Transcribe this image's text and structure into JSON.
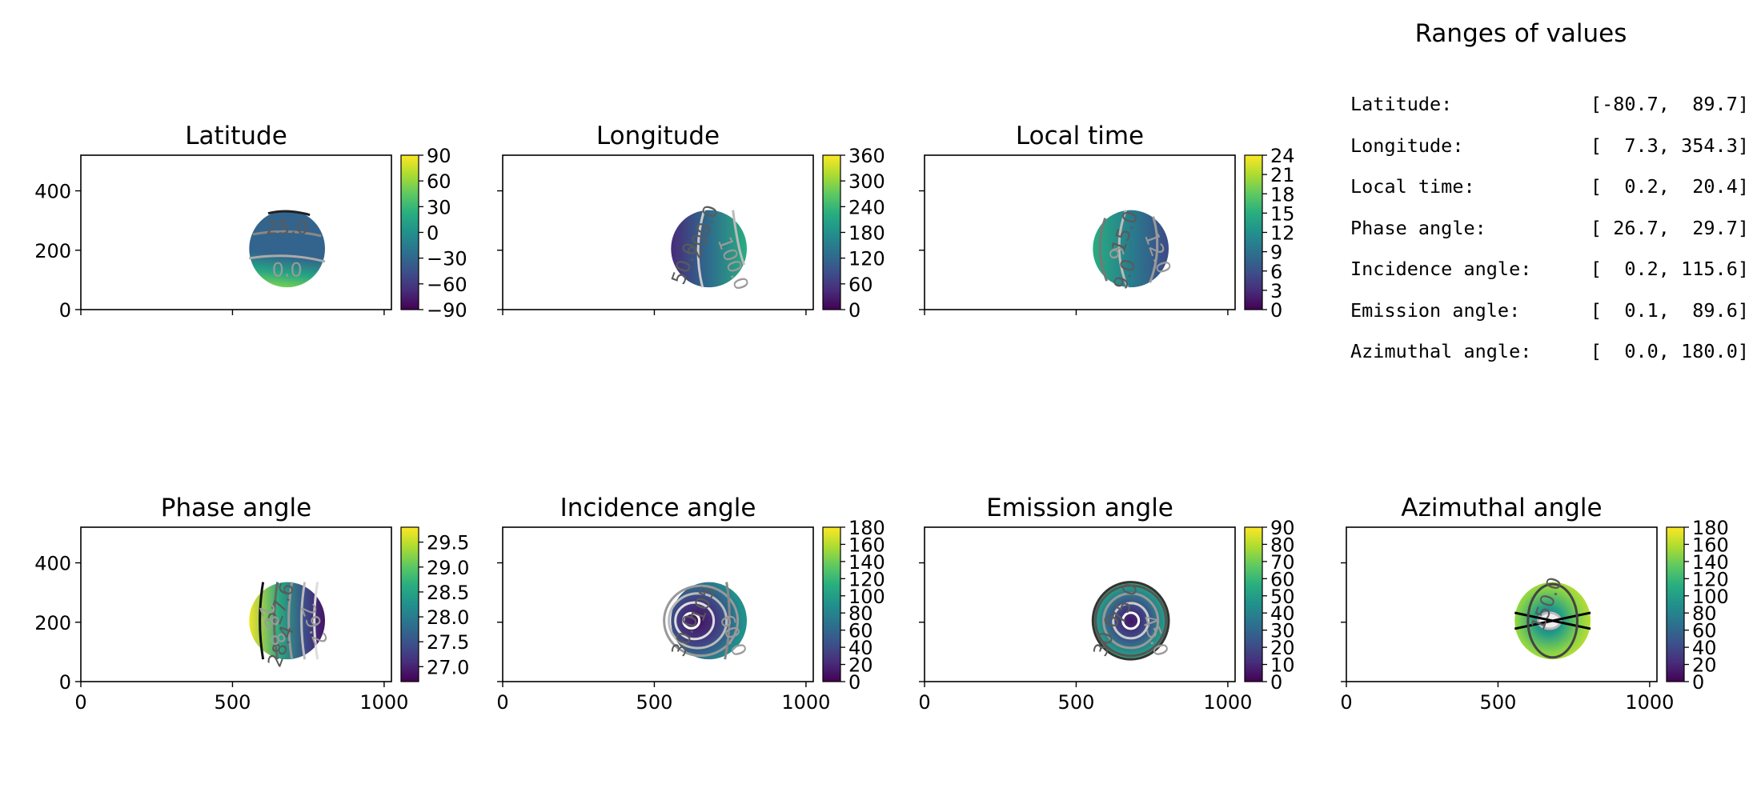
{
  "chart_data": [
    {
      "type": "heatmap",
      "title": "Latitude",
      "variable": "latitude",
      "xlim": [
        0,
        1024
      ],
      "ylim": [
        0,
        520
      ],
      "x_ticks": [
        "0",
        "500",
        "1000"
      ],
      "x_ticks_shown": false,
      "y_ticks": [
        "0",
        "200",
        "400"
      ],
      "y_ticks_shown": true,
      "colorbar": {
        "range": [
          -90,
          90
        ],
        "ticks": [
          "90",
          "60",
          "30",
          "0",
          "−30",
          "−60",
          "−90"
        ]
      },
      "disk": {
        "center_x": 680,
        "center_y": 205,
        "radius_x": 125,
        "radius_y": 130
      },
      "contour_labels": [
        "25.0",
        "0.0"
      ]
    },
    {
      "type": "heatmap",
      "title": "Longitude",
      "variable": "longitude",
      "xlim": [
        0,
        1024
      ],
      "ylim": [
        0,
        520
      ],
      "x_ticks": [
        "0",
        "500",
        "1000"
      ],
      "x_ticks_shown": false,
      "y_ticks": [
        "0",
        "200",
        "400"
      ],
      "y_ticks_shown": false,
      "colorbar": {
        "range": [
          0,
          360
        ],
        "ticks": [
          "360",
          "300",
          "240",
          "180",
          "120",
          "60",
          "0"
        ]
      },
      "disk": {
        "center_x": 680,
        "center_y": 205,
        "radius_x": 125,
        "radius_y": 130
      },
      "contour_labels": [
        "200.0",
        "100.0",
        "50.0"
      ]
    },
    {
      "type": "heatmap",
      "title": "Local time",
      "variable": "local_time",
      "xlim": [
        0,
        1024
      ],
      "ylim": [
        0,
        520
      ],
      "x_ticks": [
        "0",
        "500",
        "1000"
      ],
      "x_ticks_shown": false,
      "y_ticks": [
        "0",
        "200",
        "400"
      ],
      "y_ticks_shown": false,
      "colorbar": {
        "range": [
          0,
          24
        ],
        "ticks": [
          "24",
          "21",
          "18",
          "15",
          "12",
          "9",
          "6",
          "3",
          "0"
        ]
      },
      "disk": {
        "center_x": 680,
        "center_y": 205,
        "radius_x": 125,
        "radius_y": 130
      },
      "contour_labels": [
        "15.0",
        "12.0",
        "9.0",
        "6"
      ]
    },
    {
      "type": "heatmap",
      "title": "Phase angle",
      "variable": "phase_angle",
      "xlim": [
        0,
        1024
      ],
      "ylim": [
        0,
        520
      ],
      "x_ticks": [
        "0",
        "500",
        "1000"
      ],
      "x_ticks_shown": true,
      "y_ticks": [
        "0",
        "200",
        "400"
      ],
      "y_ticks_shown": true,
      "colorbar": {
        "range": [
          26.7,
          29.8
        ],
        "ticks": [
          "29.5",
          "29.0",
          "28.5",
          "28.0",
          "27.5",
          "27.0"
        ]
      },
      "disk": {
        "center_x": 680,
        "center_y": 205,
        "radius_x": 125,
        "radius_y": 130
      },
      "contour_labels": [
        "27.6",
        "29.2",
        "28.4",
        "28.8"
      ]
    },
    {
      "type": "heatmap",
      "title": "Incidence angle",
      "variable": "incidence_angle",
      "xlim": [
        0,
        1024
      ],
      "ylim": [
        0,
        520
      ],
      "x_ticks": [
        "0",
        "500",
        "1000"
      ],
      "x_ticks_shown": true,
      "y_ticks": [
        "0",
        "200",
        "400"
      ],
      "y_ticks_shown": false,
      "colorbar": {
        "range": [
          0,
          180
        ],
        "ticks": [
          "180",
          "160",
          "140",
          "120",
          "100",
          "80",
          "60",
          "40",
          "20",
          "0"
        ]
      },
      "disk": {
        "center_x": 680,
        "center_y": 205,
        "radius_x": 125,
        "radius_y": 130
      },
      "contour_labels": [
        "105",
        "60.0",
        "30.0"
      ]
    },
    {
      "type": "heatmap",
      "title": "Emission angle",
      "variable": "emission_angle",
      "xlim": [
        0,
        1024
      ],
      "ylim": [
        0,
        520
      ],
      "x_ticks": [
        "0",
        "500",
        "1000"
      ],
      "x_ticks_shown": true,
      "y_ticks": [
        "0",
        "200",
        "400"
      ],
      "y_ticks_shown": false,
      "colorbar": {
        "range": [
          0,
          90
        ],
        "ticks": [
          "90",
          "80",
          "70",
          "60",
          "50",
          "40",
          "30",
          "20",
          "10",
          "0"
        ]
      },
      "disk": {
        "center_x": 680,
        "center_y": 205,
        "radius_x": 125,
        "radius_y": 130
      },
      "contour_labels": [
        "75.0",
        "45.0",
        "30.0"
      ]
    },
    {
      "type": "heatmap",
      "title": "Azimuthal angle",
      "variable": "azimuthal_angle",
      "xlim": [
        0,
        1024
      ],
      "ylim": [
        0,
        520
      ],
      "x_ticks": [
        "0",
        "500",
        "1000"
      ],
      "x_ticks_shown": true,
      "y_ticks": [
        "0",
        "200",
        "400"
      ],
      "y_ticks_shown": false,
      "colorbar": {
        "range": [
          0,
          180
        ],
        "ticks": [
          "180",
          "160",
          "140",
          "120",
          "100",
          "80",
          "60",
          "40",
          "20",
          "0"
        ]
      },
      "disk": {
        "center_x": 680,
        "center_y": 205,
        "radius_x": 125,
        "radius_y": 130
      },
      "contour_labels": [
        "150.0"
      ]
    }
  ],
  "ranges_panel": {
    "title": "Ranges of values",
    "rows": [
      {
        "label": "Latitude:",
        "value": "[-80.7,  89.7]"
      },
      {
        "label": "Longitude:",
        "value": "[  7.3, 354.3]"
      },
      {
        "label": "Local time:",
        "value": "[  0.2,  20.4]"
      },
      {
        "label": "Phase angle:",
        "value": "[ 26.7,  29.7]"
      },
      {
        "label": "Incidence angle:",
        "value": "[  0.2, 115.6]"
      },
      {
        "label": "Emission angle:",
        "value": "[  0.1,  89.6]"
      },
      {
        "label": "Azimuthal angle:",
        "value": "[  0.0, 180.0]"
      }
    ]
  }
}
